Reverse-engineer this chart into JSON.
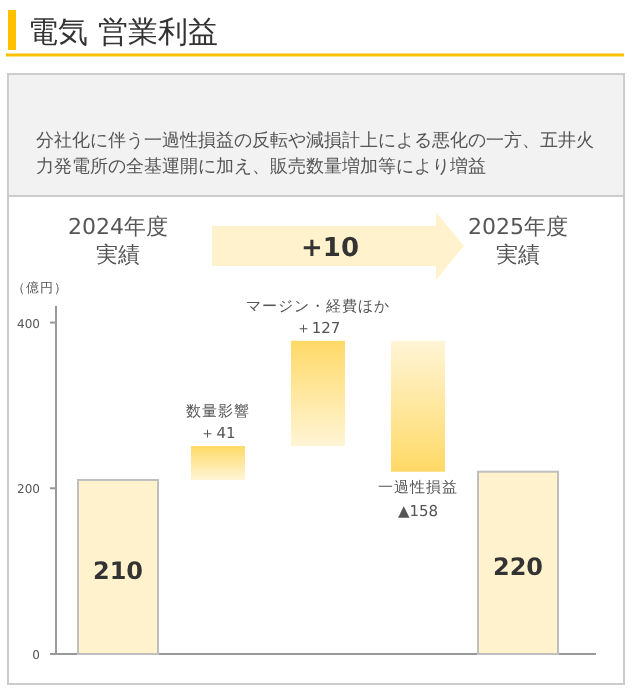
{
  "chart_data": {
    "type": "bar",
    "title": "電気 営業利益",
    "subtitle": "分社化に伴う一過性損益の反転や減損計上による悪化の一方、五井火力発電所の全基運開に加え、販売数量増加等により増益",
    "ylabel": "（億円）",
    "annotations": [
      "+10"
    ],
    "categories": [
      "2024年度実績",
      "数量影響",
      "マージン・経費ほか",
      "一過性損益",
      "2025年度実績"
    ],
    "values": [
      210,
      41,
      127,
      -158,
      220
    ],
    "base": [
      0,
      210,
      251,
      378,
      0
    ],
    "colors": [
      "#fff2cc",
      "#ffd966",
      "#ffd966",
      "#ffd966",
      "#fff2cc"
    ],
    "value_labels": [
      "210",
      "＋41",
      "＋127",
      "▲158",
      "220"
    ],
    "ylim": [
      0,
      420
    ],
    "yticks": [
      0,
      200,
      400
    ]
  }
}
